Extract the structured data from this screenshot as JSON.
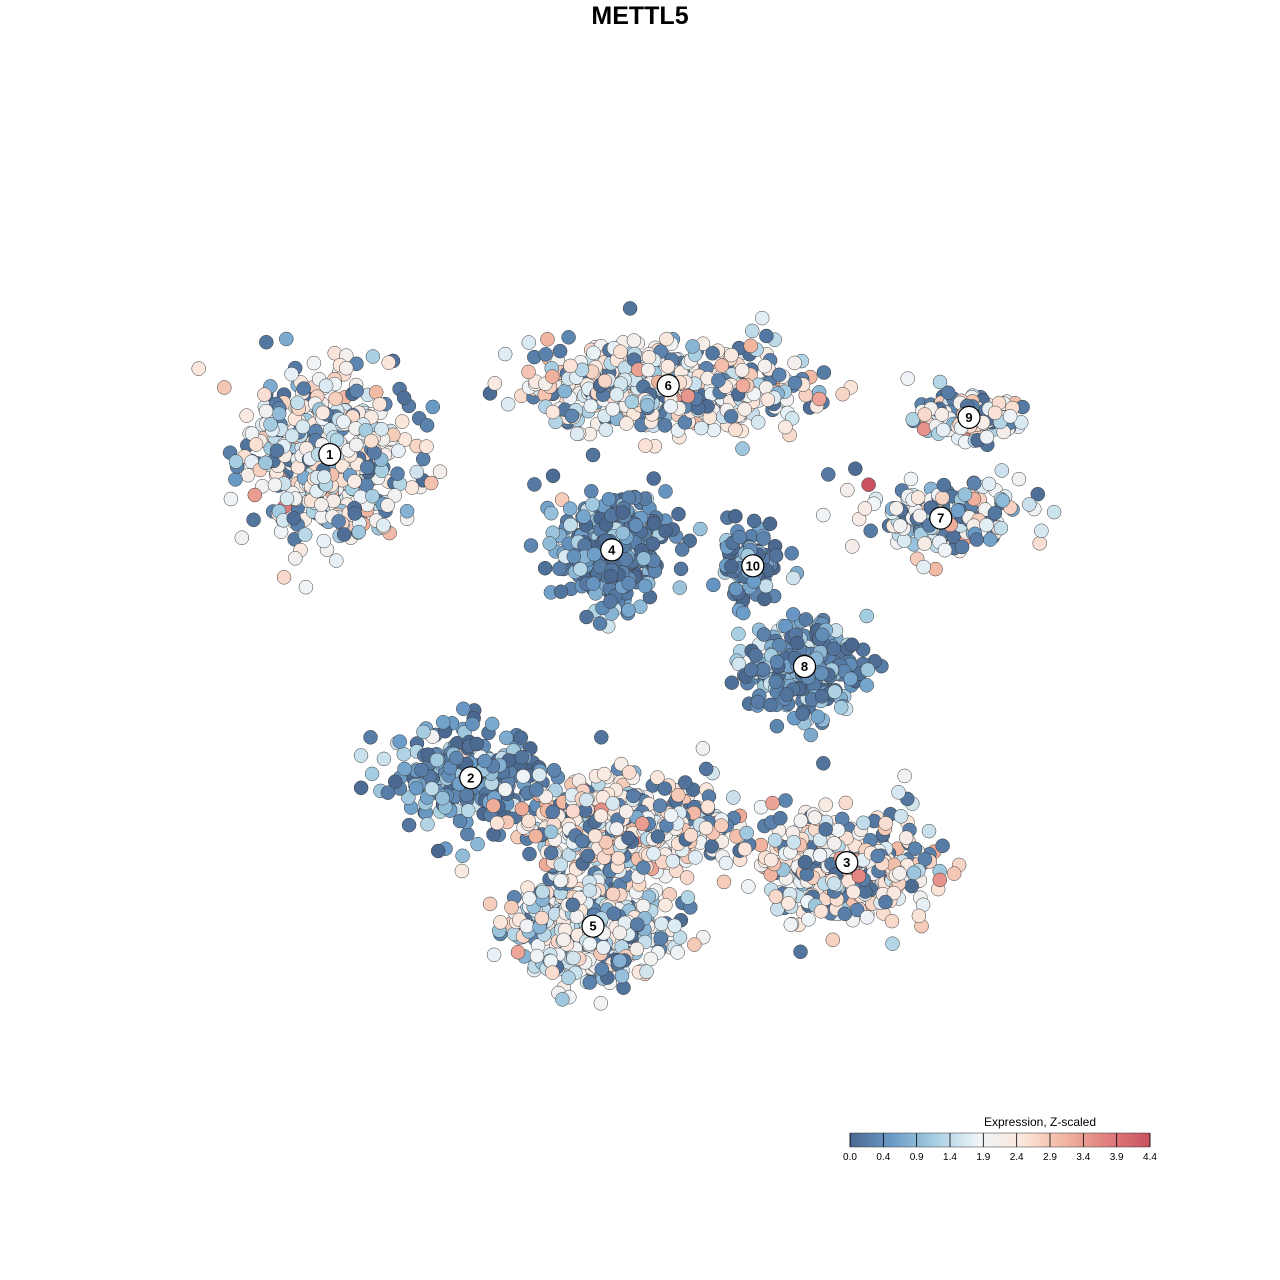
{
  "title": "METTL5",
  "chart_data": {
    "type": "scatter",
    "title": "METTL5",
    "xlabel": "",
    "ylabel": "",
    "grid": false,
    "legend": {
      "title": "Expression, Z-scaled",
      "placement": "bottom-right",
      "ticks": [
        "0.0",
        "0.4",
        "0.9",
        "1.4",
        "1.9",
        "2.4",
        "2.9",
        "3.4",
        "3.9",
        "4.4"
      ],
      "range": [
        0.0,
        4.4
      ],
      "colors": [
        "#4a6890",
        "#6b9cc8",
        "#a8cfe2",
        "#eef4f8",
        "#fbe7dc",
        "#f1b6a0",
        "#e07f7f",
        "#c9505e"
      ]
    },
    "clusters": [
      {
        "id": "1",
        "x": -6.6,
        "y": 3.5,
        "spread_x": 1.5,
        "spread_y": 1.4,
        "n": 520,
        "mean_expr": 2.0
      },
      {
        "id": "2",
        "x": -3.6,
        "y": -2.6,
        "spread_x": 1.6,
        "spread_y": 0.9,
        "n": 260,
        "mean_expr": 0.6
      },
      {
        "id": "3",
        "x": 4.4,
        "y": -4.2,
        "spread_x": 1.6,
        "spread_y": 0.9,
        "n": 420,
        "mean_expr": 2.3
      },
      {
        "id": "4",
        "x": -0.6,
        "y": 1.7,
        "spread_x": 1.1,
        "spread_y": 0.9,
        "n": 380,
        "mean_expr": 0.5
      },
      {
        "id": "5",
        "x": -1.0,
        "y": -5.4,
        "spread_x": 1.5,
        "spread_y": 0.9,
        "n": 480,
        "mean_expr": 1.9
      },
      {
        "id": "6",
        "x": 0.6,
        "y": 4.8,
        "spread_x": 2.6,
        "spread_y": 0.7,
        "n": 620,
        "mean_expr": 2.1
      },
      {
        "id": "7",
        "x": 6.4,
        "y": 2.3,
        "spread_x": 1.6,
        "spread_y": 0.6,
        "n": 200,
        "mean_expr": 2.0
      },
      {
        "id": "8",
        "x": 3.5,
        "y": -0.5,
        "spread_x": 1.2,
        "spread_y": 0.8,
        "n": 300,
        "mean_expr": 0.7
      },
      {
        "id": "9",
        "x": 7.0,
        "y": 4.2,
        "spread_x": 0.9,
        "spread_y": 0.4,
        "n": 160,
        "mean_expr": 2.1
      },
      {
        "id": "10",
        "x": 2.4,
        "y": 1.4,
        "spread_x": 0.6,
        "spread_y": 0.6,
        "n": 120,
        "mean_expr": 0.6
      },
      {
        "id": "",
        "x": -0.2,
        "y": -3.5,
        "spread_x": 2.0,
        "spread_y": 0.8,
        "n": 520,
        "mean_expr": 2.3
      }
    ]
  }
}
